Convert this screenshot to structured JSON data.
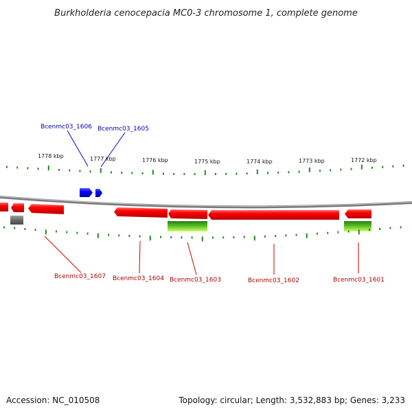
{
  "title": "Burkholderia cenocepacia MC0-3 chromosome 1, complete genome",
  "scale_labels": [
    "1778 kbp",
    "1777 kbp",
    "1776 kbp",
    "1775 kbp",
    "1774 kbp",
    "1773 kbp",
    "1772 kbp"
  ],
  "genes": [
    {
      "id": "Bcenmc03_1606",
      "strand": "forward",
      "color": "#0000cc"
    },
    {
      "id": "Bcenmc03_1605",
      "strand": "forward",
      "color": "#0000cc"
    },
    {
      "id": "Bcenmc03_1607",
      "strand": "reverse",
      "color": "#cc0000"
    },
    {
      "id": "Bcenmc03_1604",
      "strand": "reverse",
      "color": "#cc0000"
    },
    {
      "id": "Bcenmc03_1603",
      "strand": "reverse",
      "color": "#cc0000"
    },
    {
      "id": "Bcenmc03_1602",
      "strand": "reverse",
      "color": "#cc0000"
    },
    {
      "id": "Bcenmc03_1601",
      "strand": "reverse",
      "color": "#cc0000"
    }
  ],
  "colors": {
    "forward_gene": "#0000ee",
    "reverse_gene": "#ee0000",
    "backbone": "#808080",
    "tick": "#228822",
    "feature_green": "#44aa22",
    "feature_gray": "#666666"
  },
  "footer": {
    "accession": "Accession: NC_010508",
    "summary": "Topology: circular; Length: 3,532,883 bp; Genes: 3,233"
  }
}
